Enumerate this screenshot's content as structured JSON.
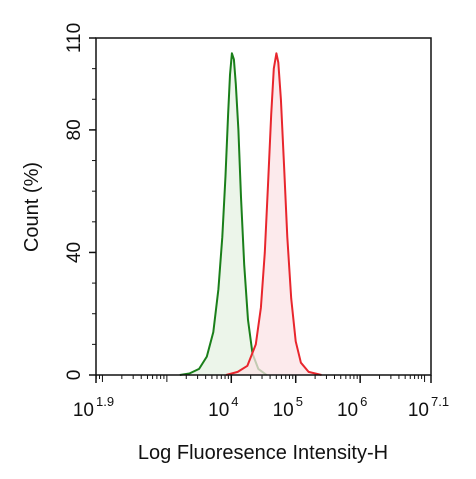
{
  "chart_data": {
    "type": "area",
    "title": "",
    "xlabel": "Log Fluoresence Intensity-H",
    "ylabel": "Count  (%)",
    "x_scale": "log10",
    "xlim_log10": [
      1.9,
      7.1
    ],
    "ylim": [
      0,
      110
    ],
    "grid": false,
    "legend": "none",
    "x_ticks": [
      {
        "base": "10",
        "exp": "1.9",
        "log10": 1.9
      },
      {
        "base": "10",
        "exp": "4",
        "log10": 4
      },
      {
        "base": "10",
        "exp": "5",
        "log10": 5
      },
      {
        "base": "10",
        "exp": "6",
        "log10": 6
      },
      {
        "base": "10",
        "exp": "7.1",
        "log10": 7.1
      }
    ],
    "y_ticks": [
      "0",
      "40",
      "80",
      "110"
    ],
    "series": [
      {
        "color": "#1a7f1a",
        "fill": "#e6f2e3",
        "points": [
          [
            3.2,
            0
          ],
          [
            3.35,
            0.5
          ],
          [
            3.5,
            2
          ],
          [
            3.62,
            6
          ],
          [
            3.72,
            14
          ],
          [
            3.8,
            28
          ],
          [
            3.86,
            45
          ],
          [
            3.91,
            65
          ],
          [
            3.95,
            85
          ],
          [
            3.98,
            98
          ],
          [
            4.01,
            105
          ],
          [
            4.04,
            103
          ],
          [
            4.07,
            95
          ],
          [
            4.11,
            80
          ],
          [
            4.15,
            58
          ],
          [
            4.2,
            36
          ],
          [
            4.26,
            18
          ],
          [
            4.33,
            7
          ],
          [
            4.42,
            2
          ],
          [
            4.55,
            0
          ]
        ]
      },
      {
        "color": "#e8262d",
        "fill": "#fbe3e5",
        "points": [
          [
            3.92,
            0
          ],
          [
            4.1,
            1
          ],
          [
            4.25,
            3
          ],
          [
            4.38,
            10
          ],
          [
            4.46,
            22
          ],
          [
            4.52,
            40
          ],
          [
            4.57,
            62
          ],
          [
            4.62,
            85
          ],
          [
            4.66,
            100
          ],
          [
            4.7,
            105
          ],
          [
            4.73,
            102
          ],
          [
            4.77,
            90
          ],
          [
            4.82,
            68
          ],
          [
            4.87,
            45
          ],
          [
            4.93,
            25
          ],
          [
            5.0,
            11
          ],
          [
            5.08,
            4
          ],
          [
            5.2,
            1
          ],
          [
            5.4,
            0
          ]
        ]
      }
    ]
  }
}
